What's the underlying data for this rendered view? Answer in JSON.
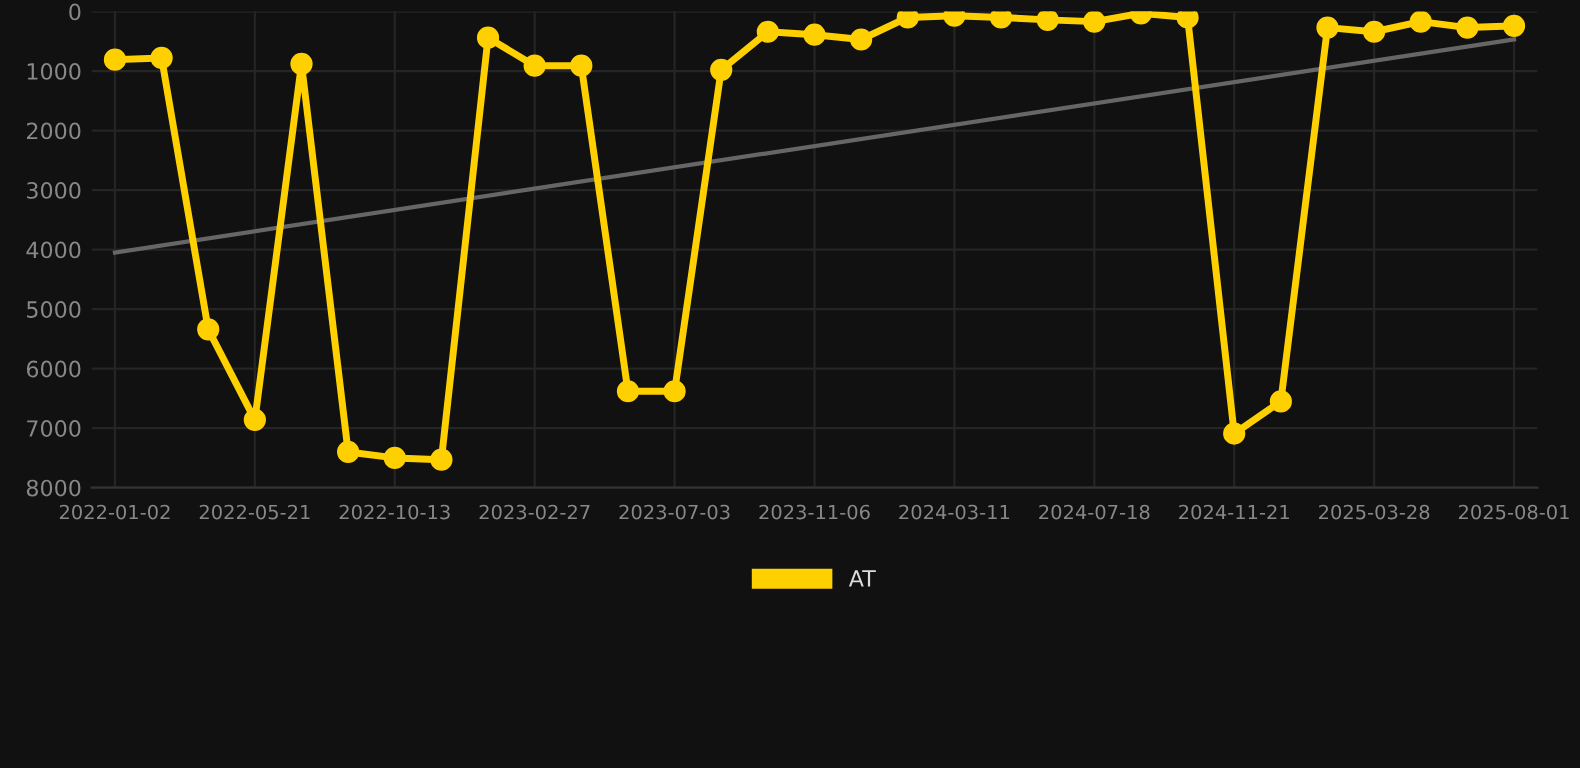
{
  "chart_data": {
    "type": "line",
    "categories": [
      "2022-01-02",
      null,
      null,
      "2022-05-21",
      null,
      null,
      "2022-10-13",
      null,
      null,
      "2023-02-27",
      null,
      null,
      "2023-07-03",
      null,
      null,
      "2023-11-06",
      null,
      null,
      "2024-03-11",
      null,
      null,
      "2024-07-18",
      null,
      null,
      "2024-11-21",
      null,
      null,
      "2025-03-28",
      null,
      null,
      "2025-08-01"
    ],
    "series": [
      {
        "name": "AT",
        "color": "#ffd000",
        "marker": "circle",
        "values": [
          810,
          780,
          5340,
          6860,
          880,
          7400,
          7500,
          7530,
          440,
          910,
          910,
          6380,
          6380,
          980,
          340,
          390,
          470,
          100,
          70,
          100,
          140,
          170,
          30,
          100,
          7090,
          6550,
          270,
          340,
          170,
          270,
          240
        ]
      },
      {
        "type": "line",
        "color": "#666666",
        "marker": "none",
        "values": [
          4050,
          null,
          null,
          null,
          null,
          null,
          null,
          null,
          null,
          null,
          null,
          null,
          null,
          null,
          null,
          null,
          null,
          null,
          null,
          null,
          null,
          null,
          null,
          null,
          null,
          null,
          null,
          null,
          null,
          null,
          470
        ]
      }
    ],
    "ylim": [
      8000,
      0
    ],
    "yticks": [
      0,
      1000,
      2000,
      3000,
      4000,
      5000,
      6000,
      7000,
      8000
    ],
    "grid": true,
    "legend": "bottom"
  }
}
